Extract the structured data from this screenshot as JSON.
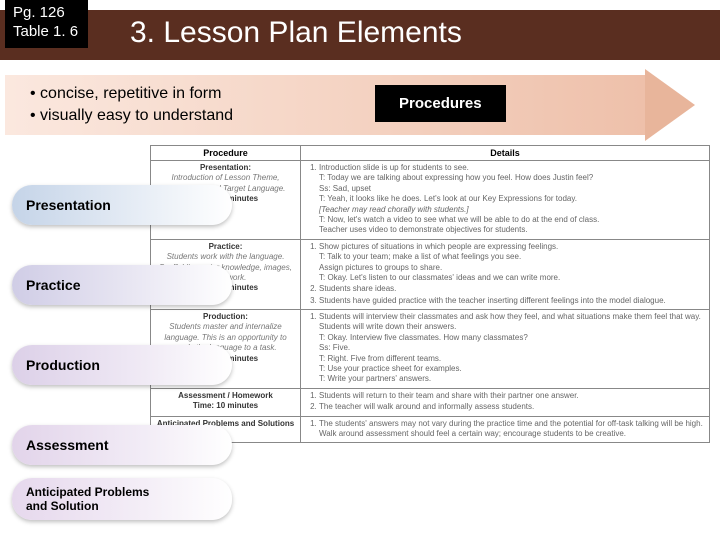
{
  "badge": {
    "line1": "Pg. 126",
    "line2": "Table 1. 6"
  },
  "title": "3. Lesson Plan Elements",
  "bullets": [
    "concise, repetitive in form",
    "visually easy to understand"
  ],
  "procBadge": "Procedures",
  "tableHeaders": {
    "col1": "Procedure",
    "col2": "Details"
  },
  "stages": {
    "presentation": "Presentation",
    "practice": "Practice",
    "production": "Production",
    "assessment": "Assessment",
    "anticipated": "Anticipated Problems\nand Solution"
  },
  "rows": [
    {
      "proc": "<b>Presentation:</b><br><i>Introduction of Lesson Theme, Objectives, and Target Language.</i><br><b>Time: 10 minutes</b>",
      "details": "<ol><li>Introduction slide is up for students to see.<br>T: Today we are talking about expressing how you feel. How does Justin feel?<br>Ss: Sad, upset<br>T: Yeah, it looks like he does. Let's look at our Key Expressions for today.<br><i>[Teacher may read chorally with students.]</i><br>T: Now, let's watch a video to see what we will be able to do at the end of class.<br>Teacher uses video to demonstrate objectives for students.</li></ol>"
    },
    {
      "proc": "<b>Practice:</b><br><i>Students work with the language. Scaffolding: prior knowledge, images, group work.</i><br><b>Time: 10 minutes</b>",
      "details": "<ol><li>Show pictures of situations in which people are expressing feelings.<br>T: Talk to your team; make a list of what feelings you see.<br>Assign pictures to groups to share.<br>T: Okay. Let's listen to our classmates' ideas and we can write more.</li><li>Students share ideas.</li><li>Students have guided practice with the teacher inserting different feelings into the model dialogue.</li></ol>"
    },
    {
      "proc": "<b>Production:</b><br><i>Students master and internalize language. This is an opportunity to apply the language to a task.</i><br><b>Time: 20 minutes</b>",
      "details": "<ol><li>Students will interview their classmates and ask how they feel, and what situations make them feel that way. Students will write down their answers.<br>T: Okay. Interview five classmates. How many classmates?<br>Ss: Five.<br>T: Right. Five from different teams.<br>T: Use your practice sheet for examples.<br>T: Write your partners' answers.</li></ol>"
    },
    {
      "proc": "<b>Assessment / Homework</b><br><b>Time: 10 minutes</b>",
      "details": "<ol><li>Students will return to their team and share with their partner one answer.</li><li>The teacher will walk around and informally assess students.</li></ol>"
    },
    {
      "proc": "<b>Anticipated Problems and Solutions</b>",
      "details": "<ol><li>The students' answers may not vary during the practice time and the potential for off-task talking will be high. Walk around assessment should feel a certain way; encourage students to be creative.</li></ol>"
    }
  ]
}
